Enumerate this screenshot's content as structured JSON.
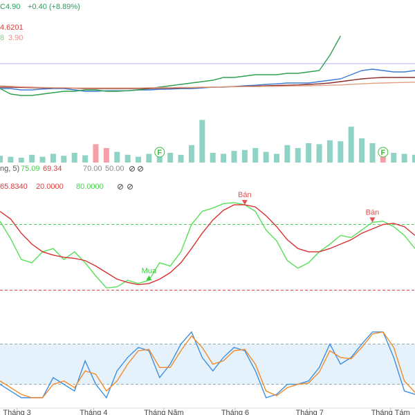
{
  "header": {
    "price": "C4.90",
    "change": "+0.40 (+8.89%)",
    "line2": "4.6201",
    "line3a": "8",
    "line3b": "3.90"
  },
  "indicator_rows": {
    "row1": [
      "ng, 5)",
      "75.09",
      "69.34",
      "70.00",
      "50.00"
    ],
    "row2_value": "65.8340"
  },
  "chart_data": [
    {
      "type": "line",
      "xlim": [
        0,
        39
      ],
      "ylim": [
        3.0,
        7.0
      ],
      "hline": {
        "value": 4.7,
        "color": "#b9a7f0"
      },
      "series": [
        {
          "color": "#3a7bd5",
          "values": [
            3.8,
            3.8,
            3.75,
            3.75,
            3.78,
            3.8,
            3.8,
            3.75,
            3.7,
            3.7,
            3.72,
            3.72,
            3.72,
            3.75,
            3.75,
            3.77,
            3.78,
            3.8,
            3.8,
            3.82,
            3.85,
            3.85,
            3.87,
            3.9,
            3.92,
            3.95,
            3.97,
            4.0,
            4.0,
            4.0,
            4.05,
            4.1,
            4.15,
            4.3,
            4.45,
            4.5,
            4.45,
            4.4,
            4.4,
            4.45
          ]
        },
        {
          "color": "#2e9e4f",
          "values": [
            3.8,
            3.6,
            3.55,
            3.55,
            3.6,
            3.65,
            3.7,
            3.7,
            3.75,
            3.75,
            3.7,
            3.7,
            3.72,
            3.75,
            3.8,
            3.85,
            3.9,
            3.95,
            4.0,
            4.05,
            4.1,
            4.2,
            4.2,
            4.25,
            4.3,
            4.3,
            4.3,
            4.35,
            4.35,
            4.4,
            4.45,
            5.0,
            5.7,
            null,
            null,
            null,
            null,
            null,
            null,
            null
          ]
        },
        {
          "color": "#8b2a2a",
          "values": [
            3.85,
            3.85,
            3.84,
            3.83,
            3.82,
            3.82,
            3.82,
            3.81,
            3.8,
            3.8,
            3.8,
            3.8,
            3.8,
            3.8,
            3.8,
            3.81,
            3.81,
            3.82,
            3.83,
            3.84,
            3.85,
            3.86,
            3.87,
            3.88,
            3.89,
            3.9,
            3.91,
            3.92,
            3.93,
            3.95,
            3.97,
            4.0,
            4.05,
            4.1,
            4.15,
            4.18,
            4.2,
            4.2,
            4.2,
            4.2
          ]
        },
        {
          "color": "#e0a080",
          "values": [
            3.9,
            3.88,
            3.86,
            3.85,
            3.84,
            3.83,
            3.83,
            3.82,
            3.82,
            3.82,
            3.82,
            3.82,
            3.82,
            3.82,
            3.83,
            3.83,
            3.83,
            3.84,
            3.84,
            3.85,
            3.85,
            3.86,
            3.86,
            3.87,
            3.87,
            3.88,
            3.88,
            3.89,
            3.9,
            3.9,
            3.91,
            3.92,
            3.93,
            3.95,
            3.97,
            3.99,
            4.0,
            4.01,
            4.02,
            4.03
          ]
        }
      ]
    },
    {
      "type": "bar",
      "xlim": [
        0,
        39
      ],
      "ylim": [
        0,
        100
      ],
      "events": [
        {
          "label": "F",
          "x": 15
        },
        {
          "label": "F",
          "x": 36
        }
      ],
      "series": [
        {
          "color": "#8fd3c6",
          "values": [
            14,
            12,
            10,
            16,
            12,
            18,
            14,
            20,
            15,
            null,
            null,
            22,
            16,
            12,
            18,
            14,
            20,
            16,
            36,
            88,
            20,
            18,
            24,
            26,
            30,
            22,
            18,
            36,
            30,
            40,
            38,
            46,
            44,
            74,
            50,
            40,
            null,
            20,
            18,
            16
          ]
        },
        {
          "color": "#f5a0a8",
          "values": [
            null,
            null,
            null,
            null,
            null,
            null,
            null,
            null,
            null,
            38,
            30,
            null,
            null,
            null,
            null,
            null,
            null,
            null,
            null,
            null,
            null,
            null,
            null,
            null,
            null,
            null,
            null,
            null,
            null,
            null,
            null,
            null,
            null,
            null,
            null,
            null,
            30,
            null,
            null,
            null
          ]
        }
      ]
    },
    {
      "type": "line",
      "xlim": [
        0,
        39
      ],
      "ylim": [
        7,
        105
      ],
      "levels": [
        {
          "value": 20,
          "label": "20.0000",
          "color": "#e04040"
        },
        {
          "value": 80,
          "label": "80.0000",
          "color": "#4ccc4c"
        }
      ],
      "annotations": [
        {
          "text": "Bán",
          "x": 23,
          "color": "#e05050"
        },
        {
          "text": "Bán",
          "x": 35,
          "color": "#e05050"
        },
        {
          "text": "Mua",
          "x": 14,
          "color": "#3ccc3c"
        }
      ],
      "series": [
        {
          "color": "#55e055",
          "values": [
            83,
            67,
            48,
            45,
            55,
            58,
            48,
            55,
            45,
            33,
            22,
            23,
            29,
            26,
            29,
            45,
            42,
            55,
            80,
            92,
            95,
            99,
            100,
            98,
            92,
            75,
            65,
            47,
            40,
            45,
            55,
            62,
            70,
            68,
            75,
            82,
            83,
            78,
            70,
            58
          ]
        },
        {
          "color": "#d63030",
          "values": [
            92,
            85,
            72,
            62,
            55,
            52,
            50,
            49,
            47,
            42,
            36,
            30,
            27,
            25,
            26,
            30,
            36,
            45,
            58,
            72,
            84,
            93,
            98,
            98,
            96,
            88,
            78,
            66,
            58,
            55,
            55,
            58,
            62,
            66,
            72,
            76,
            80,
            81,
            78,
            70
          ]
        }
      ]
    },
    {
      "type": "line",
      "xlim": [
        0,
        39
      ],
      "ylim": [
        0,
        100
      ],
      "levels": [
        20,
        80
      ],
      "xticks": [
        {
          "value": 1.6,
          "label": "Tháng 3"
        },
        {
          "value": 8.8,
          "label": "Tháng 4"
        },
        {
          "value": 15.4,
          "label": "Tháng Năm"
        },
        {
          "value": 22.1,
          "label": "Tháng 6"
        },
        {
          "value": 29.1,
          "label": "Tháng 7"
        },
        {
          "value": 36.7,
          "label": "Tháng Tám"
        }
      ],
      "series": [
        {
          "color": "#3d8fe0",
          "values": [
            20,
            10,
            0,
            0,
            0,
            30,
            20,
            10,
            55,
            20,
            0,
            40,
            60,
            75,
            70,
            30,
            50,
            80,
            98,
            60,
            40,
            60,
            75,
            70,
            40,
            0,
            5,
            20,
            20,
            25,
            45,
            80,
            50,
            60,
            80,
            98,
            98,
            60,
            10,
            5
          ]
        },
        {
          "color": "#f08a2a",
          "values": [
            25,
            15,
            5,
            0,
            0,
            20,
            25,
            15,
            40,
            35,
            10,
            25,
            50,
            70,
            72,
            45,
            45,
            70,
            92,
            75,
            50,
            55,
            70,
            72,
            50,
            10,
            3,
            15,
            20,
            22,
            38,
            70,
            60,
            58,
            75,
            95,
            98,
            75,
            25,
            8
          ]
        }
      ]
    }
  ]
}
